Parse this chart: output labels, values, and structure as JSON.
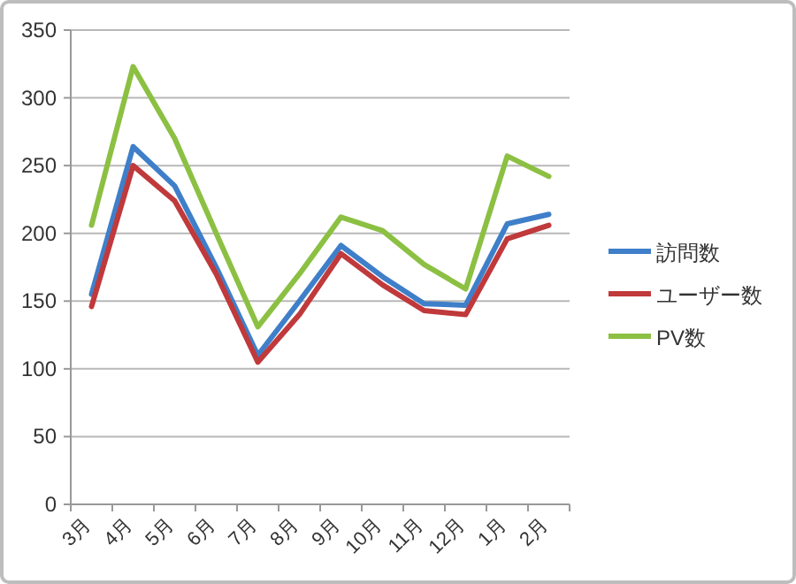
{
  "chart_data": {
    "type": "line",
    "categories": [
      "3月",
      "4月",
      "5月",
      "6月",
      "7月",
      "8月",
      "9月",
      "10月",
      "11月",
      "12月",
      "1月",
      "2月"
    ],
    "series": [
      {
        "name": "訪問数",
        "color": "#3f7fc9",
        "values": [
          155,
          264,
          235,
          175,
          110,
          150,
          191,
          168,
          148,
          147,
          207,
          214
        ]
      },
      {
        "name": "ユーザー数",
        "color": "#c0393b",
        "values": [
          146,
          250,
          224,
          170,
          105,
          140,
          185,
          162,
          143,
          140,
          196,
          206
        ]
      },
      {
        "name": "PV数",
        "color": "#8cc043",
        "values": [
          206,
          323,
          270,
          200,
          131,
          170,
          212,
          202,
          177,
          159,
          257,
          242
        ]
      }
    ],
    "ylim": [
      0,
      350
    ],
    "yticks": [
      0,
      50,
      100,
      150,
      200,
      250,
      300,
      350
    ],
    "grid": "y",
    "legend": "right",
    "marker": "none",
    "line_style": "solid"
  }
}
